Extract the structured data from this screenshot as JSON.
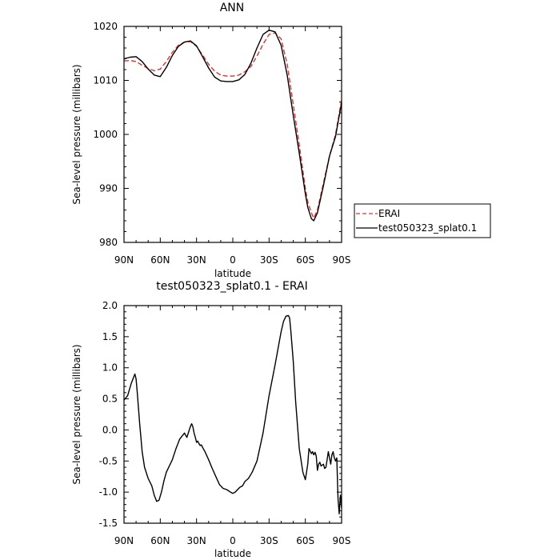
{
  "chart_data": [
    {
      "type": "line",
      "title": "ANN",
      "xlabel": "latitude",
      "ylabel": "Sea-level pressure (millibars)",
      "xlim": [
        -90,
        90
      ],
      "ylim": [
        980,
        1020
      ],
      "x_tick_values": [
        -90,
        -60,
        -30,
        0,
        30,
        60,
        90
      ],
      "x_tick_labels": [
        "90N",
        "60N",
        "30N",
        "0",
        "30S",
        "60S",
        "90S"
      ],
      "y_tick_values": [
        980,
        990,
        1000,
        1010,
        1020
      ],
      "y_tick_labels": [
        "980",
        "990",
        "1000",
        "1010",
        "1020"
      ],
      "legend_position": "right",
      "series": [
        {
          "name": "ERAI",
          "color": "#e03030",
          "dash": "dashed",
          "x": [
            -90,
            -85,
            -80,
            -75,
            -70,
            -65,
            -60,
            -55,
            -50,
            -45,
            -40,
            -35,
            -30,
            -25,
            -20,
            -15,
            -10,
            -5,
            0,
            5,
            10,
            15,
            20,
            25,
            30,
            35,
            40,
            45,
            50,
            55,
            60,
            62,
            65,
            67,
            70,
            75,
            80,
            85,
            90
          ],
          "y": [
            1013.6,
            1013.7,
            1013.5,
            1012.8,
            1012.2,
            1011.8,
            1012.1,
            1013.5,
            1015.2,
            1016.5,
            1017.1,
            1017.2,
            1016.3,
            1014.7,
            1013.0,
            1011.7,
            1011.0,
            1010.8,
            1010.8,
            1011.0,
            1011.6,
            1012.6,
            1014.5,
            1016.7,
            1018.5,
            1018.8,
            1017.7,
            1013.0,
            1005.5,
            998.0,
            990.0,
            987.5,
            985.5,
            984.5,
            986.0,
            991.0,
            996.0,
            1000.0,
            1006.4
          ]
        },
        {
          "name": "test050323_splat0.1",
          "color": "#000000",
          "dash": "solid",
          "x": [
            -90,
            -85,
            -80,
            -75,
            -70,
            -65,
            -60,
            -55,
            -50,
            -45,
            -40,
            -35,
            -30,
            -25,
            -20,
            -15,
            -10,
            -5,
            0,
            5,
            10,
            15,
            20,
            25,
            30,
            35,
            40,
            45,
            50,
            55,
            60,
            62,
            65,
            67,
            70,
            75,
            80,
            85,
            90
          ],
          "y": [
            1014.0,
            1014.3,
            1014.4,
            1013.5,
            1012.1,
            1011.0,
            1010.7,
            1012.4,
            1014.6,
            1016.3,
            1017.1,
            1017.3,
            1016.4,
            1014.4,
            1012.3,
            1010.6,
            1009.9,
            1009.8,
            1009.8,
            1010.1,
            1011.1,
            1013.2,
            1016.0,
            1018.5,
            1019.3,
            1019.0,
            1016.5,
            1011.0,
            1003.5,
            996.5,
            989.0,
            986.5,
            984.4,
            984.0,
            985.5,
            990.5,
            996.0,
            999.6,
            1005.9
          ]
        }
      ]
    },
    {
      "type": "line",
      "title": "test050323_splat0.1 - ERAI",
      "xlabel": "latitude",
      "ylabel": "Sea-level pressure (millibars)",
      "xlim": [
        -90,
        90
      ],
      "ylim": [
        -1.5,
        2.0
      ],
      "x_tick_values": [
        -90,
        -60,
        -30,
        0,
        30,
        60,
        90
      ],
      "x_tick_labels": [
        "90N",
        "60N",
        "30N",
        "0",
        "30S",
        "60S",
        "90S"
      ],
      "y_tick_values": [
        -1.5,
        -1.0,
        -0.5,
        0.0,
        0.5,
        1.0,
        1.5,
        2.0
      ],
      "y_tick_labels": [
        "-1.5",
        "-1.0",
        "-0.5",
        "0.0",
        "0.5",
        "1.0",
        "1.5",
        "2.0"
      ],
      "series": [
        {
          "color": "#000000",
          "dash": "solid",
          "x": [
            -90,
            -87,
            -84,
            -81,
            -80,
            -79,
            -77,
            -75,
            -73,
            -70,
            -67,
            -65,
            -63,
            -61,
            -59,
            -57,
            -55,
            -53,
            -50,
            -47,
            -44,
            -42,
            -40,
            -38,
            -36,
            -35,
            -34,
            -33,
            -32,
            -31,
            -30,
            -29,
            -28,
            -27,
            -26,
            -25,
            -23,
            -20,
            -17,
            -14,
            -11,
            -8,
            -5,
            -2,
            0,
            2,
            4,
            6,
            8,
            10,
            13,
            16,
            20,
            25,
            30,
            35,
            40,
            42,
            44,
            46,
            47,
            48,
            50,
            52,
            55,
            58,
            60,
            62,
            63,
            65,
            66,
            67,
            68,
            69,
            70,
            71,
            72,
            73,
            75,
            76,
            77,
            78,
            79,
            80,
            81,
            82,
            83,
            84,
            85,
            86,
            87,
            88,
            89,
            90
          ],
          "y": [
            0.48,
            0.55,
            0.75,
            0.9,
            0.82,
            0.6,
            0.1,
            -0.35,
            -0.6,
            -0.78,
            -0.9,
            -1.05,
            -1.15,
            -1.13,
            -1.0,
            -0.82,
            -0.68,
            -0.6,
            -0.48,
            -0.3,
            -0.15,
            -0.1,
            -0.05,
            -0.12,
            0.0,
            0.06,
            0.1,
            0.05,
            -0.05,
            -0.12,
            -0.2,
            -0.18,
            -0.22,
            -0.25,
            -0.24,
            -0.28,
            -0.35,
            -0.48,
            -0.62,
            -0.75,
            -0.88,
            -0.94,
            -0.96,
            -1.0,
            -1.02,
            -1.0,
            -0.96,
            -0.92,
            -0.9,
            -0.83,
            -0.78,
            -0.68,
            -0.5,
            -0.05,
            0.55,
            1.05,
            1.58,
            1.75,
            1.83,
            1.84,
            1.8,
            1.6,
            1.1,
            0.45,
            -0.3,
            -0.68,
            -0.8,
            -0.55,
            -0.3,
            -0.38,
            -0.35,
            -0.4,
            -0.36,
            -0.42,
            -0.65,
            -0.55,
            -0.52,
            -0.58,
            -0.55,
            -0.62,
            -0.6,
            -0.48,
            -0.35,
            -0.45,
            -0.55,
            -0.4,
            -0.35,
            -0.45,
            -0.5,
            -0.45,
            -1.1,
            -1.35,
            -1.05,
            -1.25
          ]
        }
      ]
    }
  ]
}
